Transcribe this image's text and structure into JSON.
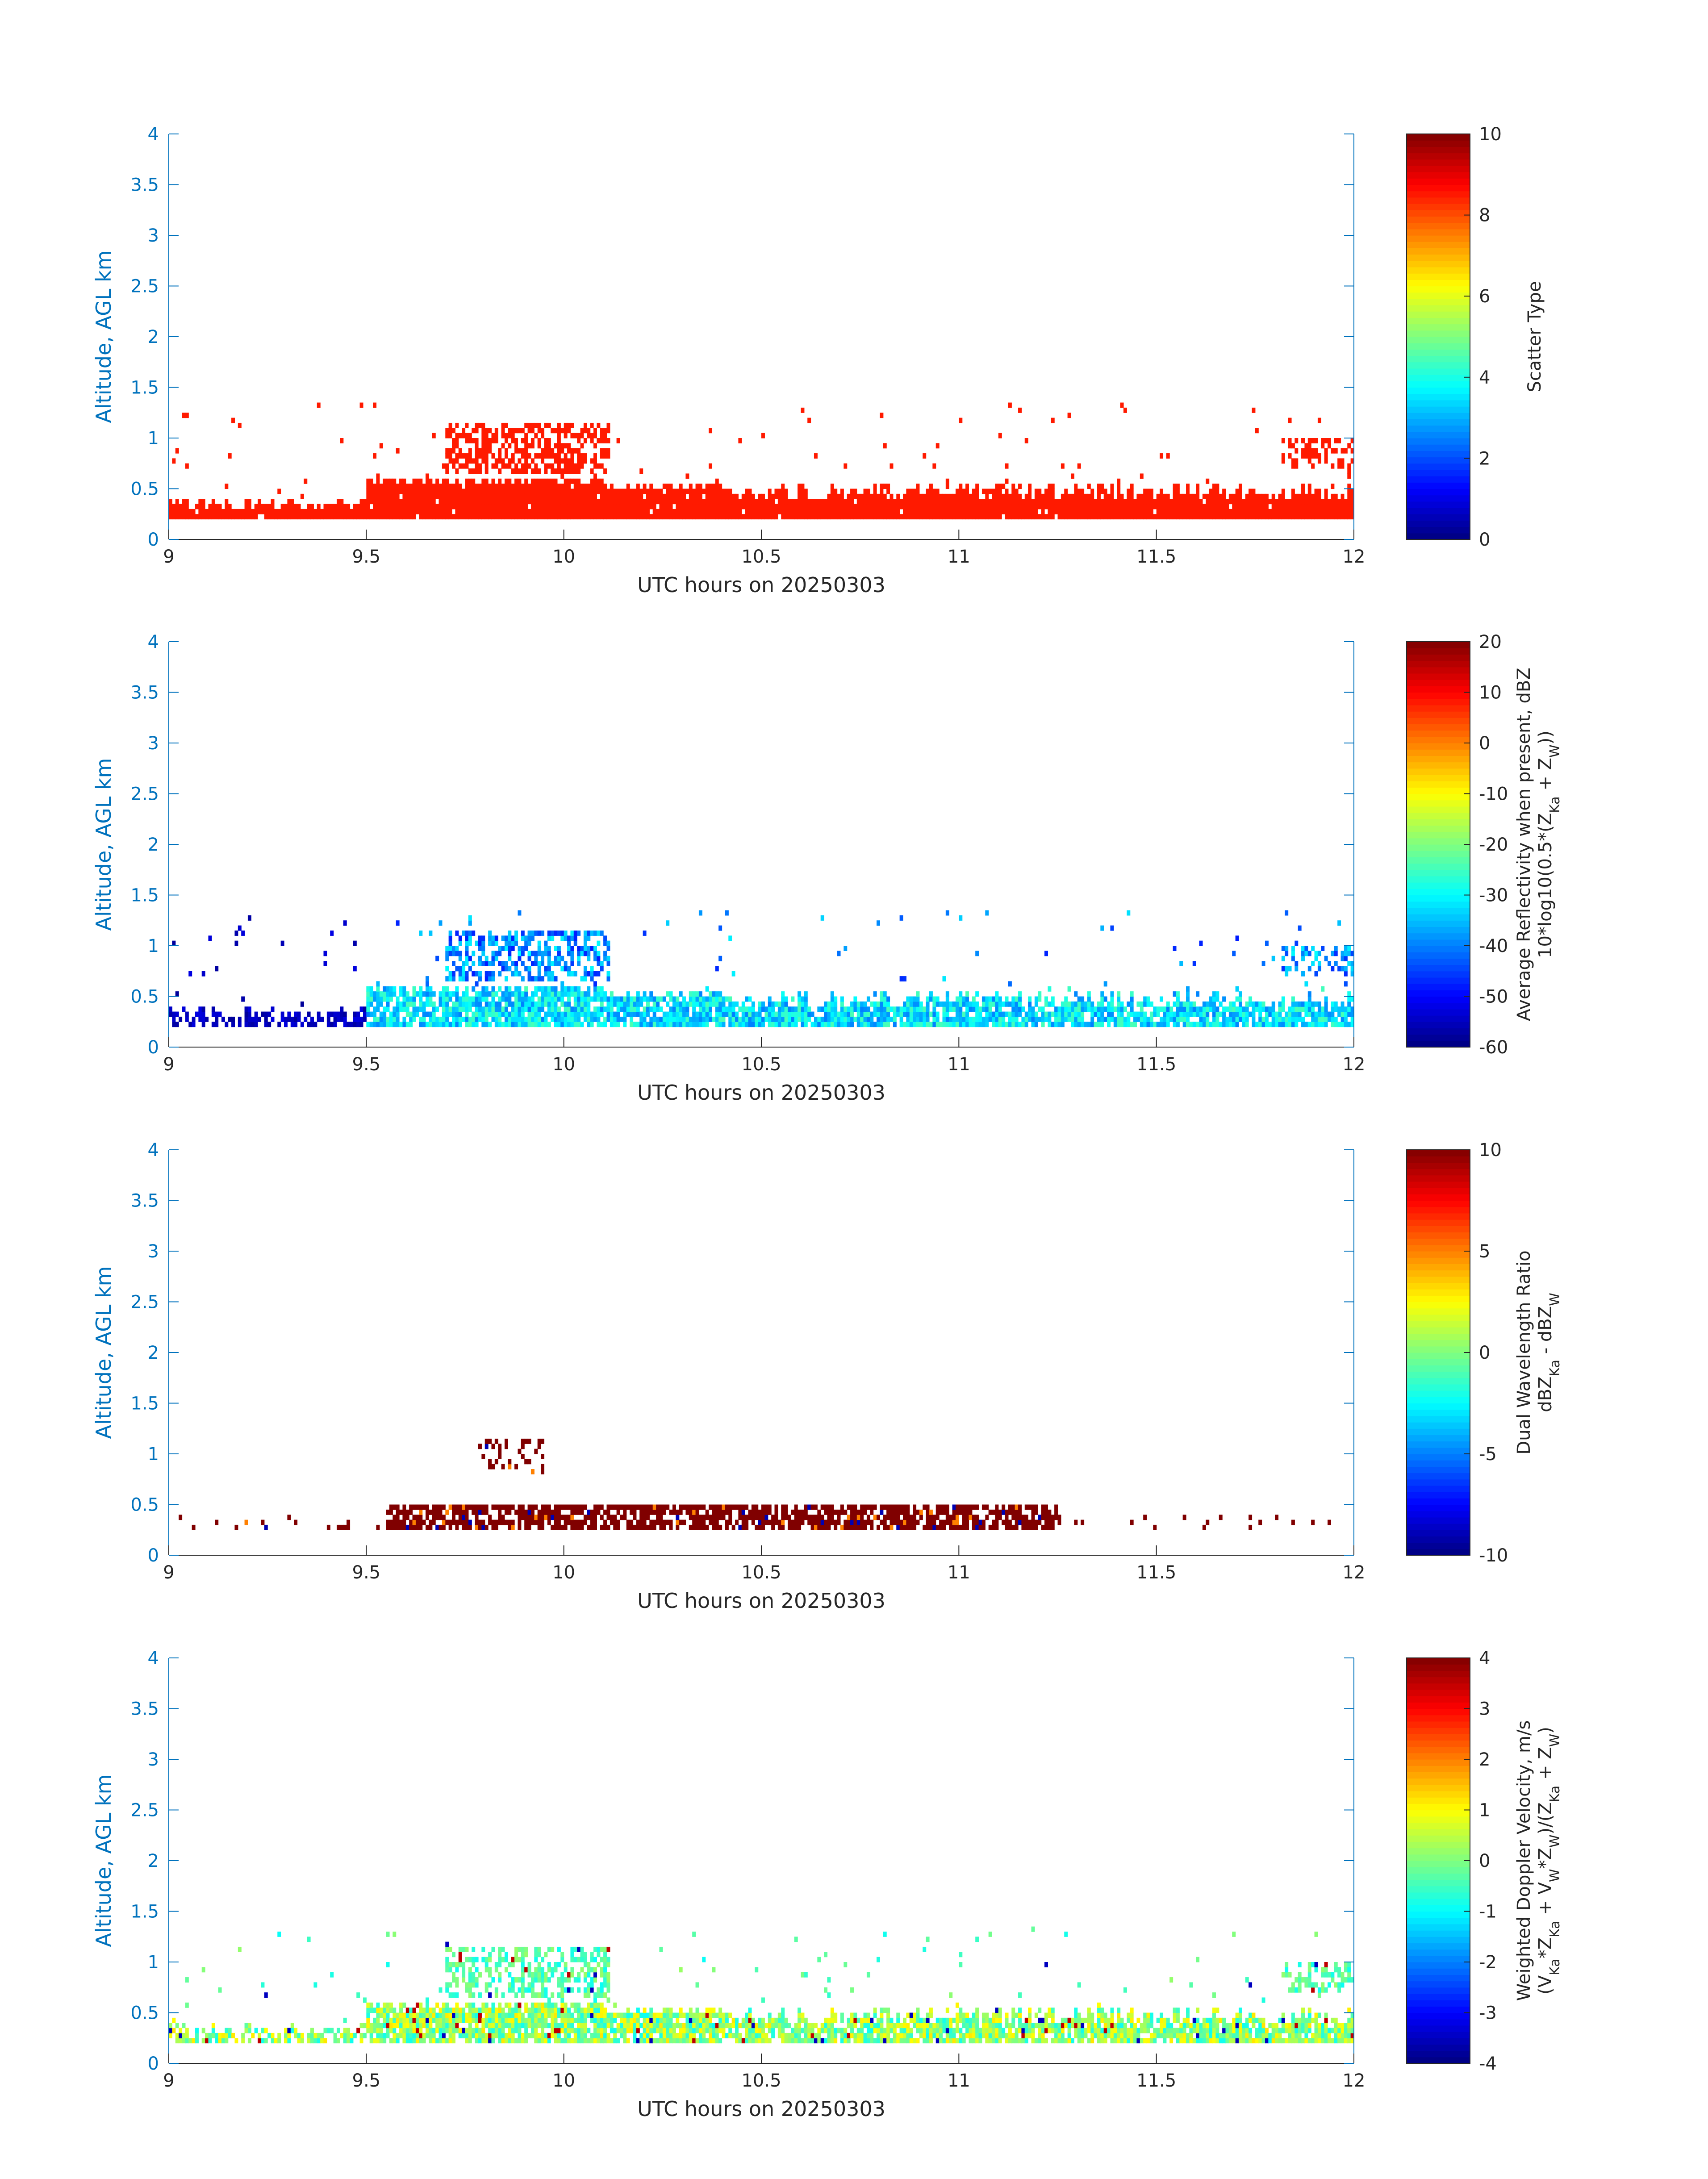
{
  "axis_color": "#0072BD",
  "text_color": "#262626",
  "chart_data": [
    {
      "type": "heatmap",
      "name": "scatter-type",
      "xlabel": "UTC hours on 20250303",
      "ylabel": "Altitude, AGL km",
      "xlim": [
        9,
        12
      ],
      "ylim": [
        0,
        4
      ],
      "xticks": [
        "9",
        "9.5",
        "10",
        "10.5",
        "11",
        "11.5",
        "12"
      ],
      "yticks": [
        "0",
        "0.5",
        "1",
        "1.5",
        "2",
        "2.5",
        "3",
        "3.5",
        "4"
      ],
      "colormap": "jet",
      "clim": [
        0,
        10
      ],
      "colorbar_ticks": [
        "0",
        "2",
        "4",
        "6",
        "8",
        "10"
      ],
      "colorbar_label_lines": [
        "Scatter Type"
      ],
      "dominant_value": 8.5,
      "data_notes": "Layer of constant value ~8.5 from ~0.2 to 0.4-0.6 km across 9-12 h; cloud patch up to ~1.1 km between 9.7 and 10.1 h; isolated cells up to ~1.35 km"
    },
    {
      "type": "heatmap",
      "name": "reflectivity",
      "xlabel": "UTC hours on 20250303",
      "ylabel": "Altitude, AGL km",
      "xlim": [
        9,
        12
      ],
      "ylim": [
        0,
        4
      ],
      "xticks": [
        "9",
        "9.5",
        "10",
        "10.5",
        "11",
        "11.5",
        "12"
      ],
      "yticks": [
        "0",
        "0.5",
        "1",
        "1.5",
        "2",
        "2.5",
        "3",
        "3.5",
        "4"
      ],
      "colormap": "jet",
      "clim": [
        -60,
        20
      ],
      "colorbar_ticks": [
        "-60",
        "-50",
        "-40",
        "-30",
        "-20",
        "-10",
        "0",
        "10",
        "20"
      ],
      "colorbar_label_lines": [
        "Average Reflectivity when present, dBZ",
        "10*log10(0.5*(Z_Ka + Z_W))"
      ],
      "data_notes": "Near-surface values -55 to -60 dBZ before 9.5 h; -30 to -40 dBZ between 9.5-12 h below 0.6 km; cloud aloft -35 to -50 dBZ"
    },
    {
      "type": "heatmap",
      "name": "dual-wavelength-ratio",
      "xlabel": "UTC hours on 20250303",
      "ylabel": "Altitude, AGL km",
      "xlim": [
        9,
        12
      ],
      "ylim": [
        0,
        4
      ],
      "xticks": [
        "9",
        "9.5",
        "10",
        "10.5",
        "11",
        "11.5",
        "12"
      ],
      "yticks": [
        "0",
        "0.5",
        "1",
        "1.5",
        "2",
        "2.5",
        "3",
        "3.5",
        "4"
      ],
      "colormap": "jet",
      "clim": [
        -10,
        10
      ],
      "colorbar_ticks": [
        "-10",
        "-5",
        "0",
        "5",
        "10"
      ],
      "colorbar_label_lines": [
        "Dual Wavelength Ratio",
        "dBZ_Ka - dBZ_W"
      ],
      "data_notes": "Mostly saturated at 10 dB between 0.25 and 0.5 km from 9.55-11.25 h, with isolated pixels near 1 km around 9.8-9.9 h"
    },
    {
      "type": "heatmap",
      "name": "doppler-velocity",
      "xlabel": "UTC hours on 20250303",
      "ylabel": "Altitude, AGL km",
      "xlim": [
        9,
        12
      ],
      "ylim": [
        0,
        4
      ],
      "xticks": [
        "9",
        "9.5",
        "10",
        "10.5",
        "11",
        "11.5",
        "12"
      ],
      "yticks": [
        "0",
        "0.5",
        "1",
        "1.5",
        "2",
        "2.5",
        "3",
        "3.5",
        "4"
      ],
      "colormap": "jet",
      "clim": [
        -4,
        4
      ],
      "colorbar_ticks": [
        "-4",
        "-3",
        "-2",
        "-1",
        "0",
        "1",
        "2",
        "3",
        "4"
      ],
      "colorbar_label_lines": [
        "Weighted Doppler Velocity, m/s",
        "(V_Ka*Z_Ka + V_W*Z_W)/(Z_Ka + Z_W)"
      ],
      "data_notes": "Values mostly -1 to +1 m/s below 0.6 km; cloud aloft around -0.5 m/s with scattered -2 to +3 pixels"
    }
  ]
}
